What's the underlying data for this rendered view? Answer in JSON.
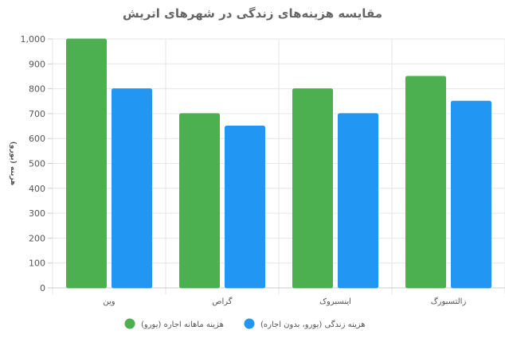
{
  "chart_data": {
    "type": "bar",
    "title": "مقایسه هزینه‌های زندگی در شهرهای اتریش",
    "xlabel": "",
    "ylabel": "هزینه (یورو)",
    "categories": [
      "وین",
      "گراص",
      "اینسبروک",
      "زالتسبورگ"
    ],
    "ylim": [
      0,
      1000
    ],
    "yticks": [
      "0",
      "100",
      "200",
      "300",
      "400",
      "500",
      "600",
      "700",
      "800",
      "900",
      "1,000"
    ],
    "grid": true,
    "legend_position": "bottom",
    "series": [
      {
        "name": "هزینه ماهانه اجاره (یورو)",
        "color": "#4caf50",
        "values": [
          1000,
          700,
          800,
          850
        ]
      },
      {
        "name": "هزینه زندگی (یورو، بدون اجاره)",
        "color": "#2196f3",
        "values": [
          800,
          650,
          700,
          750
        ]
      }
    ]
  }
}
